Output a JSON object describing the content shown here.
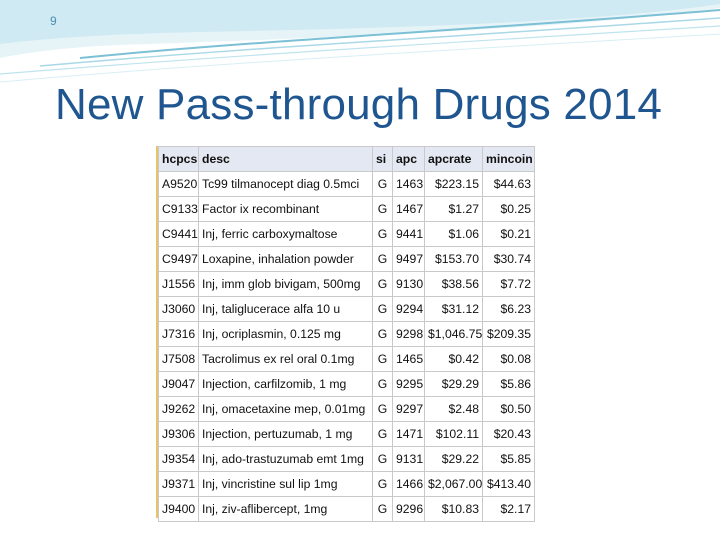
{
  "slide": {
    "number": "9",
    "title": "New Pass-through Drugs 2014"
  },
  "colors": {
    "title": "#1f5690",
    "swoosh_light": "#bfe3ee",
    "swoosh_dark": "#7cc0d6",
    "header_bg": "#e3e8f2"
  },
  "table": {
    "headers": [
      "hcpcs",
      "desc",
      "si",
      "apc",
      "apcrate",
      "mincoin"
    ],
    "rows": [
      [
        "A9520",
        "Tc99 tilmanocept diag 0.5mci",
        "G",
        "1463",
        "$223.15",
        "$44.63"
      ],
      [
        "C9133",
        "Factor ix recombinant",
        "G",
        "1467",
        "$1.27",
        "$0.25"
      ],
      [
        "C9441",
        "Inj, ferric carboxymaltose",
        "G",
        "9441",
        "$1.06",
        "$0.21"
      ],
      [
        "C9497",
        "Loxapine, inhalation powder",
        "G",
        "9497",
        "$153.70",
        "$30.74"
      ],
      [
        "J1556",
        "Inj, imm glob bivigam, 500mg",
        "G",
        "9130",
        "$38.56",
        "$7.72"
      ],
      [
        "J3060",
        "Inj, taliglucerace alfa 10 u",
        "G",
        "9294",
        "$31.12",
        "$6.23"
      ],
      [
        "J7316",
        "Inj, ocriplasmin, 0.125 mg",
        "G",
        "9298",
        "$1,046.75",
        "$209.35"
      ],
      [
        "J7508",
        "Tacrolimus ex rel oral 0.1mg",
        "G",
        "1465",
        "$0.42",
        "$0.08"
      ],
      [
        "J9047",
        "Injection, carfilzomib, 1 mg",
        "G",
        "9295",
        "$29.29",
        "$5.86"
      ],
      [
        "J9262",
        "Inj, omacetaxine mep, 0.01mg",
        "G",
        "9297",
        "$2.48",
        "$0.50"
      ],
      [
        "J9306",
        "Injection, pertuzumab, 1 mg",
        "G",
        "1471",
        "$102.11",
        "$20.43"
      ],
      [
        "J9354",
        "Inj, ado-trastuzumab emt 1mg",
        "G",
        "9131",
        "$29.22",
        "$5.85"
      ],
      [
        "J9371",
        "Inj, vincristine sul lip 1mg",
        "G",
        "1466",
        "$2,067.00",
        "$413.40"
      ],
      [
        "J9400",
        "Inj, ziv-aflibercept, 1mg",
        "G",
        "9296",
        "$10.83",
        "$2.17"
      ]
    ]
  }
}
